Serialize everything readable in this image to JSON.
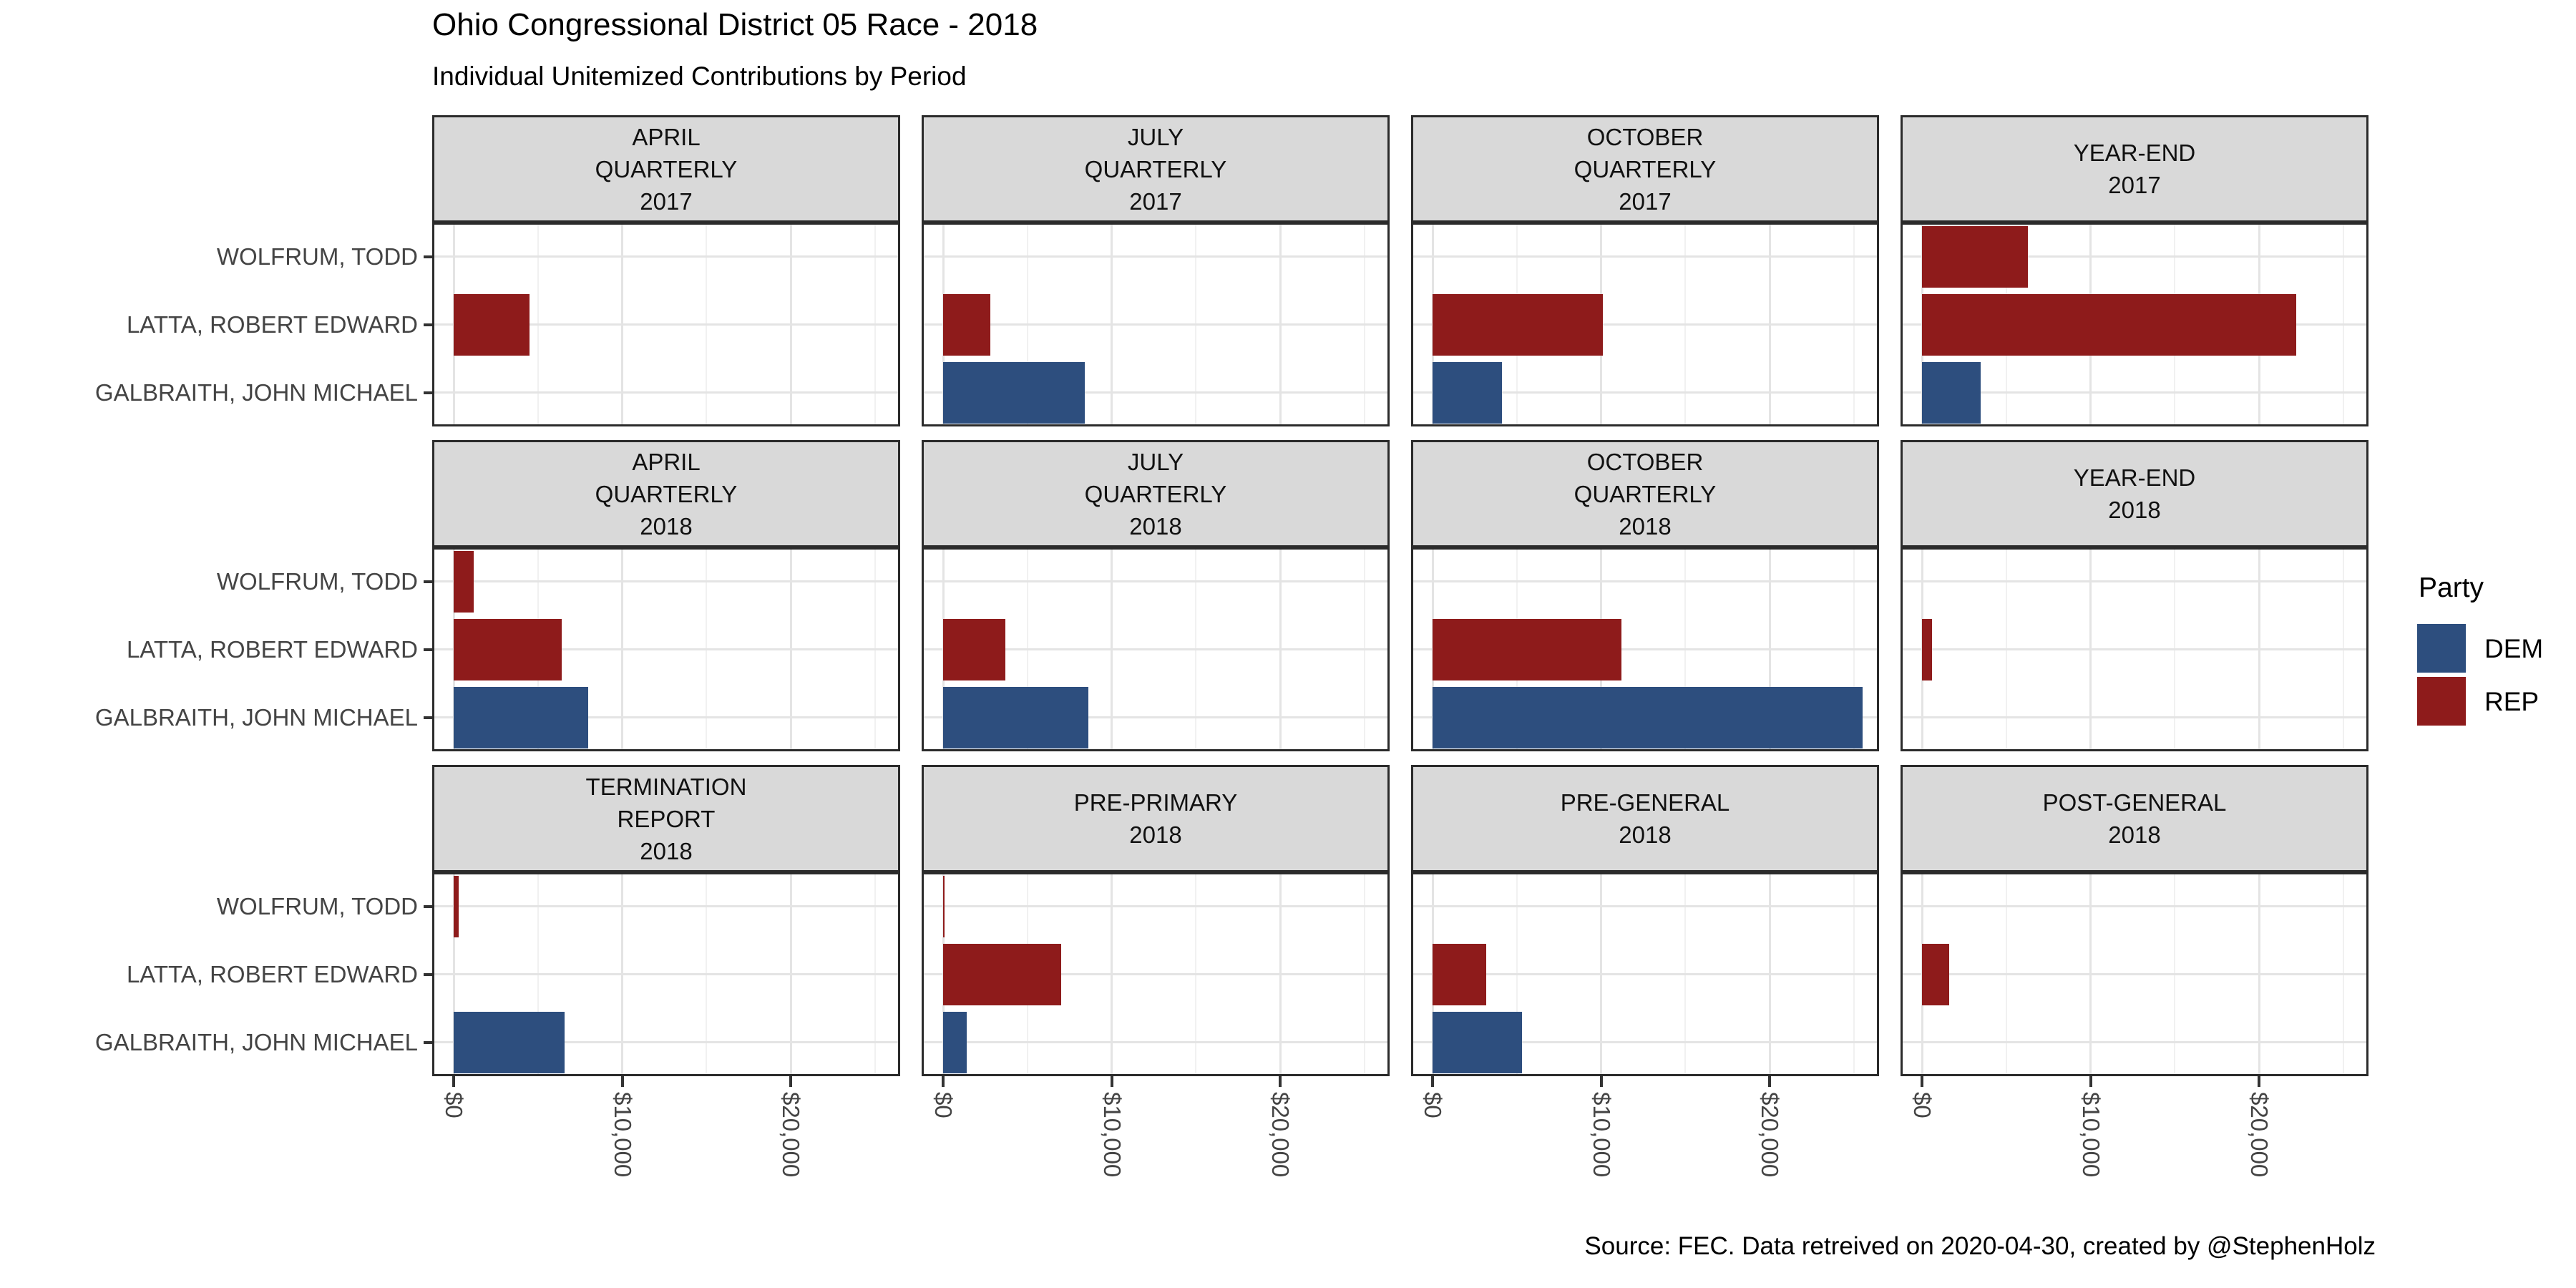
{
  "title": "Ohio Congressional District 05 Race - 2018",
  "subtitle": "Individual Unitemized Contributions by Period",
  "source_note": "Source: FEC. Data retreived on 2020-04-30, created by @StephenHolz",
  "legend": {
    "title": "Party",
    "items": [
      {
        "label": "DEM",
        "color": "#2D4E7E"
      },
      {
        "label": "REP",
        "color": "#8E1B1B"
      }
    ]
  },
  "chart_data": {
    "type": "bar",
    "orientation": "horizontal",
    "title": "Ohio Congressional District 05 Race - 2018",
    "subtitle": "Individual Unitemized Contributions by Period",
    "candidates": [
      "WOLFRUM, TODD",
      "LATTA, ROBERT EDWARD",
      "GALBRAITH, JOHN MICHAEL"
    ],
    "candidate_parties": [
      "REP",
      "REP",
      "DEM"
    ],
    "party_colors": {
      "DEM": "#2D4E7E",
      "REP": "#8E1B1B"
    },
    "x_axis": {
      "tick_labels": [
        "$0",
        "$10,000",
        "$20,000"
      ],
      "tick_values": [
        0,
        10000,
        20000
      ],
      "minor_tick_values": [
        5000,
        15000,
        25000
      ],
      "range": [
        -1300,
        26500
      ],
      "unit": "USD"
    },
    "facet_grid": {
      "rows": 3,
      "cols": 4
    },
    "facets": [
      {
        "label_lines": [
          "APRIL",
          "QUARTERLY",
          "2017"
        ],
        "values": [
          0,
          4500,
          0
        ]
      },
      {
        "label_lines": [
          "JULY",
          "QUARTERLY",
          "2017"
        ],
        "values": [
          0,
          2800,
          8400
        ]
      },
      {
        "label_lines": [
          "OCTOBER",
          "QUARTERLY",
          "2017"
        ],
        "values": [
          0,
          10100,
          4100
        ]
      },
      {
        "label_lines": [
          "YEAR-END",
          "2017"
        ],
        "values": [
          6300,
          22200,
          3500
        ]
      },
      {
        "label_lines": [
          "APRIL",
          "QUARTERLY",
          "2018"
        ],
        "values": [
          1200,
          6400,
          8000
        ]
      },
      {
        "label_lines": [
          "JULY",
          "QUARTERLY",
          "2018"
        ],
        "values": [
          0,
          3700,
          8600
        ]
      },
      {
        "label_lines": [
          "OCTOBER",
          "QUARTERLY",
          "2018"
        ],
        "values": [
          0,
          11200,
          25500
        ]
      },
      {
        "label_lines": [
          "YEAR-END",
          "2018"
        ],
        "values": [
          0,
          600,
          0
        ]
      },
      {
        "label_lines": [
          "TERMINATION",
          "REPORT",
          "2018"
        ],
        "values": [
          300,
          0,
          6600
        ]
      },
      {
        "label_lines": [
          "PRE-PRIMARY",
          "2018"
        ],
        "values": [
          50,
          7000,
          1400
        ]
      },
      {
        "label_lines": [
          "PRE-GENERAL",
          "2018"
        ],
        "values": [
          0,
          3200,
          5300
        ]
      },
      {
        "label_lines": [
          "POST-GENERAL",
          "2018"
        ],
        "values": [
          0,
          1600,
          0
        ]
      }
    ]
  }
}
